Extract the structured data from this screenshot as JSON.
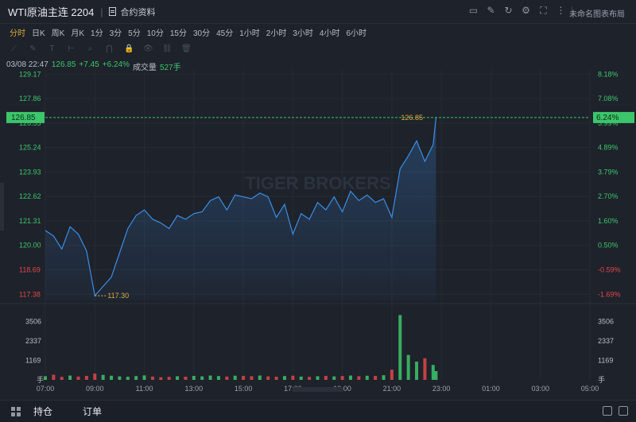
{
  "header": {
    "title": "WTI原油主连 2204",
    "separator": "|",
    "contract_label": "合约资料",
    "layout_label": "未命名图表布局"
  },
  "toolbar_icons": [
    "screen-icon",
    "edit-icon",
    "refresh-icon",
    "settings-icon",
    "fullscreen-icon",
    "more-icon"
  ],
  "periods": [
    "分时",
    "日K",
    "周K",
    "月K",
    "1分",
    "3分",
    "5分",
    "10分",
    "15分",
    "30分",
    "45分",
    "1小时",
    "2小时",
    "3小时",
    "4小时",
    "6小时"
  ],
  "active_period": "分时",
  "draw_tools": [
    "line-tool-icon",
    "pen-tool-icon",
    "text-tool-icon",
    "measure-tool-icon",
    "zoom-tool-icon",
    "magnet-tool-icon",
    "lock-tool-icon",
    "eye-tool-icon",
    "link-tool-icon",
    "trash-tool-icon"
  ],
  "info": {
    "time": "03/08 22:47",
    "price": "126.85",
    "change": "+7.45",
    "change_pct": "+6.24%",
    "volume_label": "成交量",
    "volume": "527手"
  },
  "colors": {
    "line": "#3a8ee6",
    "up": "#3cc66b",
    "down": "#e04848",
    "accent": "#e0a93a",
    "background": "#1e222b"
  },
  "watermark": "TIGER BROKERS",
  "chart_data": {
    "type": "line",
    "title": "",
    "x_ticks": [
      "07:00",
      "09:00",
      "11:00",
      "13:00",
      "15:00",
      "17:00",
      "19:00",
      "21:00",
      "23:00",
      "01:00",
      "03:00",
      "05:00"
    ],
    "price_ticks": [
      "129.17",
      "127.86",
      "126.55",
      "125.24",
      "123.93",
      "122.62",
      "121.31",
      "120.00",
      "118.69",
      "117.38"
    ],
    "pct_ticks": [
      "8.18%",
      "7.08%",
      "5.99%",
      "4.89%",
      "3.79%",
      "2.70%",
      "1.60%",
      "0.50%",
      "-0.59%",
      "-1.69%"
    ],
    "prev_close": 119.4,
    "ylim": [
      117.05,
      129.4
    ],
    "current_price_label": "126.85",
    "current_pct_label": "6.24%",
    "high_label": "126.85",
    "low_label": "117.30",
    "low_time": "09:00",
    "volume_ticks": [
      "3506",
      "2337",
      "1169"
    ],
    "volume_unit": "手",
    "series": [
      {
        "x": [
          "07:00",
          "07:20",
          "07:40",
          "08:00",
          "08:20",
          "08:40",
          "09:00",
          "09:20",
          "09:40",
          "10:00",
          "10:20",
          "10:40",
          "11:00",
          "11:20",
          "11:40",
          "12:00",
          "12:20",
          "12:40",
          "13:00",
          "13:20",
          "13:40",
          "14:00",
          "14:20",
          "14:40",
          "15:00",
          "15:20",
          "15:40",
          "16:00",
          "16:20",
          "16:40",
          "17:00",
          "17:20",
          "17:40",
          "18:00",
          "18:20",
          "18:40",
          "19:00",
          "19:20",
          "19:40",
          "20:00",
          "20:20",
          "20:40",
          "21:00",
          "21:20",
          "21:40",
          "22:00",
          "22:20",
          "22:40",
          "22:47"
        ],
        "values": [
          120.8,
          120.5,
          119.8,
          121.0,
          120.6,
          119.7,
          117.3,
          117.8,
          118.3,
          119.6,
          120.9,
          121.6,
          121.9,
          121.4,
          121.2,
          120.9,
          121.6,
          121.4,
          121.7,
          121.8,
          122.4,
          122.6,
          121.9,
          122.7,
          122.6,
          122.5,
          122.8,
          122.6,
          121.5,
          122.2,
          120.6,
          121.7,
          121.4,
          122.3,
          121.9,
          122.6,
          121.8,
          122.9,
          122.4,
          122.7,
          122.3,
          122.5,
          121.5,
          124.1,
          124.8,
          125.6,
          124.5,
          125.4,
          126.85
        ]
      }
    ],
    "volume": [
      220,
      310,
      180,
      260,
      200,
      240,
      380,
      300,
      250,
      210,
      190,
      230,
      270,
      200,
      160,
      180,
      220,
      190,
      240,
      210,
      260,
      230,
      200,
      250,
      240,
      220,
      260,
      210,
      190,
      230,
      250,
      200,
      180,
      220,
      240,
      210,
      230,
      260,
      220,
      250,
      240,
      280,
      610,
      3900,
      1500,
      1100,
      1300,
      900,
      527
    ]
  }
}
